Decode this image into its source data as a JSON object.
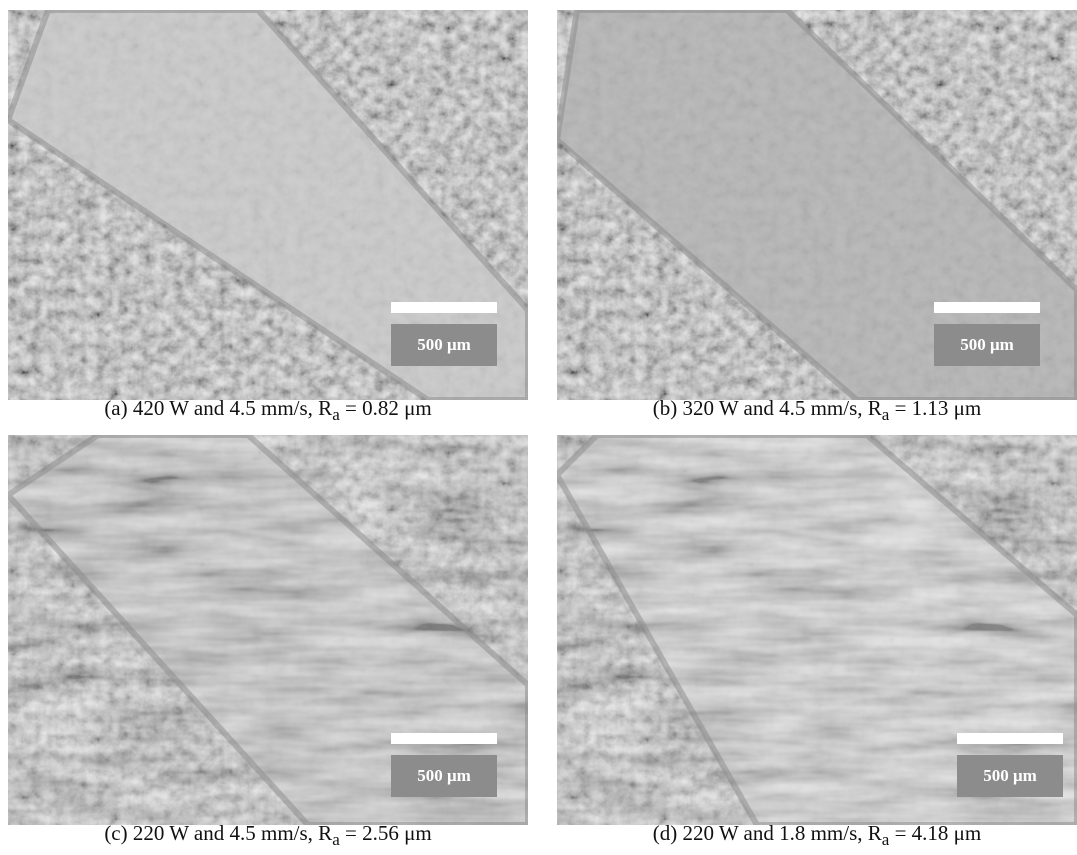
{
  "panels": [
    {
      "scale_label": "500 μm",
      "caption": {
        "text": "(a) 420 W and 4.5 mm/s, R",
        "subscript": "a",
        "value": " = 0.82 μm"
      }
    },
    {
      "scale_label": "500 μm",
      "caption": {
        "text": "(b) 320 W and 4.5 mm/s, R",
        "subscript": "a",
        "value": " = 1.13 μm"
      }
    },
    {
      "scale_label": "500 μm",
      "caption": {
        "text": "(c) 220 W and 4.5 mm/s, R",
        "subscript": "a",
        "value": " = 2.56 μm"
      }
    },
    {
      "scale_label": "500 μm",
      "caption": {
        "text": "(d) 220 W and 1.8 mm/s, R",
        "subscript": "a",
        "value": " = 4.18 μm"
      }
    }
  ]
}
